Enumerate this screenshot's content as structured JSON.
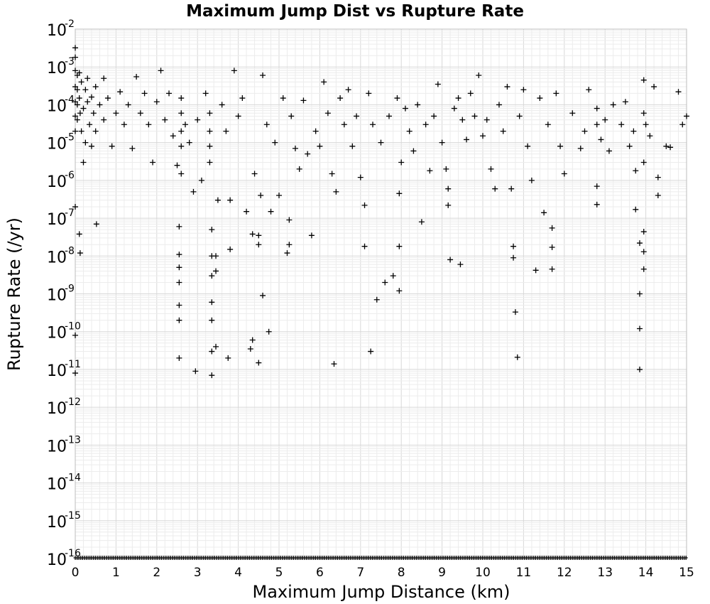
{
  "chart_data": {
    "type": "scatter",
    "title": "Maximum Jump Dist vs Rupture Rate",
    "xlabel": "Maximum Jump Distance (km)",
    "ylabel": "Rupture Rate (/yr)",
    "xlim": [
      0,
      15
    ],
    "ylim": [
      1e-16,
      0.01
    ],
    "y_scale": "log",
    "grid": true,
    "marker": "plus",
    "x_ticks": [
      "0",
      "1",
      "2",
      "3",
      "4",
      "5",
      "6",
      "7",
      "8",
      "9",
      "10",
      "11",
      "12",
      "13",
      "14",
      "15"
    ],
    "y_ticks": [
      {
        "base": "10",
        "exp": "-2"
      },
      {
        "base": "10",
        "exp": "-3"
      },
      {
        "base": "10",
        "exp": "-4"
      },
      {
        "base": "10",
        "exp": "-5"
      },
      {
        "base": "10",
        "exp": "-6"
      },
      {
        "base": "10",
        "exp": "-7"
      },
      {
        "base": "10",
        "exp": "-8"
      },
      {
        "base": "10",
        "exp": "-9"
      },
      {
        "base": "10",
        "exp": "-10"
      },
      {
        "base": "10",
        "exp": "-11"
      },
      {
        "base": "10",
        "exp": "-12"
      },
      {
        "base": "10",
        "exp": "-13"
      },
      {
        "base": "10",
        "exp": "-14"
      },
      {
        "base": "10",
        "exp": "-15"
      },
      {
        "base": "10",
        "exp": "-16"
      }
    ],
    "points": [
      [
        0.0,
        0.0032
      ],
      [
        0.0,
        0.0018
      ],
      [
        0.0,
        0.0008
      ],
      [
        0.0,
        0.0003
      ],
      [
        0.0,
        0.00012
      ],
      [
        0.0,
        5e-05
      ],
      [
        0.0,
        2e-05
      ],
      [
        0.0,
        2e-07
      ],
      [
        0.0,
        8e-11
      ],
      [
        0.0,
        8e-12
      ],
      [
        0.05,
        0.0006
      ],
      [
        0.05,
        0.00025
      ],
      [
        0.05,
        0.0001
      ],
      [
        0.05,
        4e-05
      ],
      [
        0.1,
        3.8e-08
      ],
      [
        0.12,
        1.2e-08
      ],
      [
        0.1,
        0.0007
      ],
      [
        0.1,
        0.00015
      ],
      [
        0.12,
        6e-05
      ],
      [
        0.15,
        0.0004
      ],
      [
        0.15,
        2e-05
      ],
      [
        0.2,
        8e-05
      ],
      [
        0.2,
        3e-06
      ],
      [
        0.25,
        0.00025
      ],
      [
        0.25,
        1e-05
      ],
      [
        0.3,
        0.0005
      ],
      [
        0.3,
        0.00012
      ],
      [
        0.35,
        3e-05
      ],
      [
        0.4,
        8e-06
      ],
      [
        0.4,
        0.00016
      ],
      [
        0.45,
        6e-05
      ],
      [
        0.5,
        0.0003
      ],
      [
        0.5,
        2e-05
      ],
      [
        0.52,
        7e-08
      ],
      [
        0.6,
        0.0001
      ],
      [
        0.7,
        0.0005
      ],
      [
        0.7,
        4e-05
      ],
      [
        0.8,
        0.00015
      ],
      [
        0.9,
        8e-06
      ],
      [
        1.0,
        6e-05
      ],
      [
        1.1,
        0.00022
      ],
      [
        1.2,
        3e-05
      ],
      [
        1.3,
        0.0001
      ],
      [
        1.4,
        7e-06
      ],
      [
        1.5,
        0.00055
      ],
      [
        1.6,
        6e-05
      ],
      [
        1.7,
        0.0002
      ],
      [
        1.8,
        3e-05
      ],
      [
        1.9,
        3e-06
      ],
      [
        2.0,
        0.00012
      ],
      [
        2.1,
        0.0008
      ],
      [
        2.2,
        4e-05
      ],
      [
        2.3,
        0.0002
      ],
      [
        2.4,
        1.5e-05
      ],
      [
        2.5,
        2.5e-06
      ],
      [
        2.55,
        6e-08
      ],
      [
        2.55,
        1.1e-08
      ],
      [
        2.55,
        5e-09
      ],
      [
        2.55,
        2e-09
      ],
      [
        2.55,
        5e-10
      ],
      [
        2.55,
        2e-10
      ],
      [
        2.55,
        2e-11
      ],
      [
        2.6,
        0.00015
      ],
      [
        2.6,
        6e-05
      ],
      [
        2.6,
        2e-05
      ],
      [
        2.6,
        8e-06
      ],
      [
        2.6,
        1.5e-06
      ],
      [
        2.7,
        3e-05
      ],
      [
        2.8,
        1e-05
      ],
      [
        2.9,
        5e-07
      ],
      [
        2.95,
        9e-12
      ],
      [
        3.0,
        4e-05
      ],
      [
        3.1,
        1e-06
      ],
      [
        3.2,
        0.0002
      ],
      [
        3.3,
        6e-05
      ],
      [
        3.3,
        2e-05
      ],
      [
        3.3,
        8e-06
      ],
      [
        3.3,
        3e-06
      ],
      [
        3.35,
        5e-08
      ],
      [
        3.35,
        1e-08
      ],
      [
        3.35,
        3e-09
      ],
      [
        3.35,
        6e-10
      ],
      [
        3.35,
        2e-10
      ],
      [
        3.35,
        3e-11
      ],
      [
        3.35,
        7e-12
      ],
      [
        3.45,
        1e-08
      ],
      [
        3.45,
        4e-09
      ],
      [
        3.45,
        4e-11
      ],
      [
        3.5,
        3e-07
      ],
      [
        3.6,
        0.0001
      ],
      [
        3.7,
        2e-05
      ],
      [
        3.75,
        2e-11
      ],
      [
        3.8,
        1.5e-08
      ],
      [
        3.8,
        3e-07
      ],
      [
        3.9,
        0.0008
      ],
      [
        4.0,
        5e-05
      ],
      [
        4.1,
        0.00015
      ],
      [
        4.2,
        1.5e-07
      ],
      [
        4.3,
        3.5e-11
      ],
      [
        4.35,
        3.8e-08
      ],
      [
        4.35,
        6e-11
      ],
      [
        4.4,
        1.5e-06
      ],
      [
        4.5,
        3.5e-08
      ],
      [
        4.5,
        2e-08
      ],
      [
        4.5,
        1.5e-11
      ],
      [
        4.55,
        4e-07
      ],
      [
        4.6,
        9e-10
      ],
      [
        4.6,
        0.0006
      ],
      [
        4.7,
        3e-05
      ],
      [
        4.75,
        1e-10
      ],
      [
        4.8,
        1.5e-07
      ],
      [
        4.9,
        1e-05
      ],
      [
        5.0,
        4e-07
      ],
      [
        5.1,
        0.00015
      ],
      [
        5.2,
        1.2e-08
      ],
      [
        5.25,
        2e-08
      ],
      [
        5.25,
        9e-08
      ],
      [
        5.3,
        5e-05
      ],
      [
        5.4,
        7e-06
      ],
      [
        5.5,
        2e-06
      ],
      [
        5.6,
        0.00013
      ],
      [
        5.7,
        5e-06
      ],
      [
        5.8,
        3.5e-08
      ],
      [
        5.9,
        2e-05
      ],
      [
        6.0,
        8e-06
      ],
      [
        6.1,
        0.0004
      ],
      [
        6.2,
        6e-05
      ],
      [
        6.3,
        1.5e-06
      ],
      [
        6.35,
        1.4e-11
      ],
      [
        6.4,
        5e-07
      ],
      [
        6.5,
        0.00015
      ],
      [
        6.6,
        3e-05
      ],
      [
        6.7,
        0.00025
      ],
      [
        6.8,
        8e-06
      ],
      [
        6.9,
        5e-05
      ],
      [
        7.0,
        1.2e-06
      ],
      [
        7.1,
        2.2e-07
      ],
      [
        7.1,
        1.8e-08
      ],
      [
        7.2,
        0.0002
      ],
      [
        7.25,
        3e-11
      ],
      [
        7.3,
        3e-05
      ],
      [
        7.4,
        7e-10
      ],
      [
        7.5,
        1e-05
      ],
      [
        7.6,
        2e-09
      ],
      [
        7.7,
        5e-05
      ],
      [
        7.8,
        3e-09
      ],
      [
        7.9,
        0.00015
      ],
      [
        7.95,
        4.5e-07
      ],
      [
        7.95,
        1.8e-08
      ],
      [
        7.95,
        1.2e-09
      ],
      [
        8.0,
        3e-06
      ],
      [
        8.1,
        8e-05
      ],
      [
        8.2,
        2e-05
      ],
      [
        8.3,
        6e-06
      ],
      [
        8.4,
        0.0001
      ],
      [
        8.5,
        8e-08
      ],
      [
        8.6,
        3e-05
      ],
      [
        8.7,
        1.8e-06
      ],
      [
        8.8,
        5e-05
      ],
      [
        8.9,
        0.00035
      ],
      [
        9.0,
        1e-05
      ],
      [
        9.1,
        2e-06
      ],
      [
        9.15,
        6e-07
      ],
      [
        9.15,
        2.2e-07
      ],
      [
        9.2,
        8e-09
      ],
      [
        9.3,
        8e-05
      ],
      [
        9.4,
        0.00015
      ],
      [
        9.45,
        6e-09
      ],
      [
        9.5,
        4e-05
      ],
      [
        9.6,
        1.2e-05
      ],
      [
        9.7,
        0.0002
      ],
      [
        9.8,
        5e-05
      ],
      [
        9.9,
        0.0006
      ],
      [
        10.0,
        1.5e-05
      ],
      [
        10.1,
        4e-05
      ],
      [
        10.2,
        2e-06
      ],
      [
        10.3,
        6e-07
      ],
      [
        10.4,
        0.0001
      ],
      [
        10.5,
        2e-05
      ],
      [
        10.6,
        0.0003
      ],
      [
        10.7,
        6e-07
      ],
      [
        10.75,
        1.8e-08
      ],
      [
        10.75,
        9e-09
      ],
      [
        10.8,
        3.3e-10
      ],
      [
        10.85,
        2.1e-11
      ],
      [
        10.9,
        5e-05
      ],
      [
        11.0,
        0.00025
      ],
      [
        11.1,
        8e-06
      ],
      [
        11.2,
        1e-06
      ],
      [
        11.3,
        4.2e-09
      ],
      [
        11.4,
        0.00015
      ],
      [
        11.5,
        1.4e-07
      ],
      [
        11.6,
        3e-05
      ],
      [
        11.7,
        5.5e-08
      ],
      [
        11.7,
        1.7e-08
      ],
      [
        11.7,
        4.5e-09
      ],
      [
        11.8,
        0.0002
      ],
      [
        11.9,
        8e-06
      ],
      [
        12.0,
        1.5e-06
      ],
      [
        12.2,
        6e-05
      ],
      [
        12.4,
        7e-06
      ],
      [
        12.5,
        2e-05
      ],
      [
        12.6,
        0.00025
      ],
      [
        12.8,
        8e-05
      ],
      [
        12.8,
        3e-05
      ],
      [
        12.8,
        7e-07
      ],
      [
        12.8,
        2.3e-07
      ],
      [
        12.9,
        1.2e-05
      ],
      [
        13.0,
        4e-05
      ],
      [
        13.1,
        6e-06
      ],
      [
        13.2,
        0.0001
      ],
      [
        13.4,
        3e-05
      ],
      [
        13.5,
        0.00012
      ],
      [
        13.6,
        8e-06
      ],
      [
        13.7,
        2e-05
      ],
      [
        13.75,
        1.8e-06
      ],
      [
        13.75,
        1.7e-07
      ],
      [
        13.85,
        2.2e-08
      ],
      [
        13.85,
        1e-09
      ],
      [
        13.85,
        1.2e-10
      ],
      [
        13.85,
        1e-11
      ],
      [
        13.95,
        0.00045
      ],
      [
        13.95,
        6e-05
      ],
      [
        13.95,
        3e-06
      ],
      [
        13.95,
        4.4e-08
      ],
      [
        13.95,
        1.3e-08
      ],
      [
        13.95,
        4.5e-09
      ],
      [
        14.0,
        3e-05
      ],
      [
        14.1,
        1.5e-05
      ],
      [
        14.2,
        0.0003
      ],
      [
        14.3,
        1.2e-06
      ],
      [
        14.3,
        4e-07
      ],
      [
        14.5,
        8e-06
      ],
      [
        14.6,
        7.5e-06
      ],
      [
        14.8,
        0.00022
      ],
      [
        14.9,
        3e-05
      ],
      [
        15.0,
        5e-05
      ]
    ]
  }
}
